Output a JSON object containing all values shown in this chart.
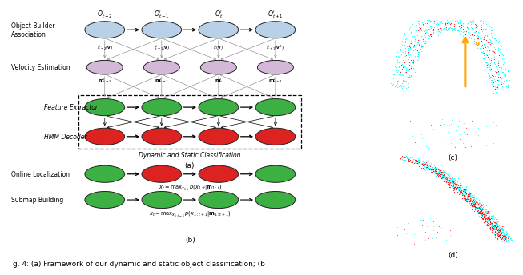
{
  "bg_color": "#ffffff",
  "caption": "g. 4: (a) Framework of our dynamic and static object classification; (b",
  "node_colors": {
    "blue": "#b8d0e8",
    "purple": "#d4b8d8",
    "green": "#3cb043",
    "red": "#dd2222"
  },
  "top_labels": [
    "$O^i_{t-2}$",
    "$O^i_{t-1}$",
    "$O^i_t$",
    "$O^i_{t+1}$"
  ],
  "f_labels": [
    "$f^i_{t-2}(\\mathbf{v})$",
    "$f^i_{t-1}(\\mathbf{v})$",
    "$f^i_t(\\mathbf{v})$",
    "$f^i_{t+1}(\\mathbf{v}')$"
  ],
  "m_labels": [
    "$\\mathbf{m}^i_{t-2}$",
    "$\\mathbf{m}^i_{t-1}$",
    "$\\mathbf{m}^i_t$",
    "$\\mathbf{m}^i_{t+1}$"
  ],
  "label_object": "Object Builder\nAssociation",
  "label_velocity": "Velocity Estimation",
  "label_feature": "Feature Extractor",
  "label_hmm": "HMM Decoder",
  "label_dsc": "Dynamic and Static Classification",
  "label_a": "(a)",
  "label_online": "Online Localization",
  "label_submap": "Submap Building",
  "eq1": "$x_t = \\mathrm{max}_{x_{1:t}}\\, p(x_{1:t}|\\mathbf{m}_{1:t})$",
  "eq2": "$x_t = \\mathrm{max}_{x_{1:t-1}}\\, p(x_{1:t+1}|\\mathbf{m}_{1:t+1})$",
  "label_b": "(b)",
  "label_c": "(c)",
  "label_d": "(d)"
}
